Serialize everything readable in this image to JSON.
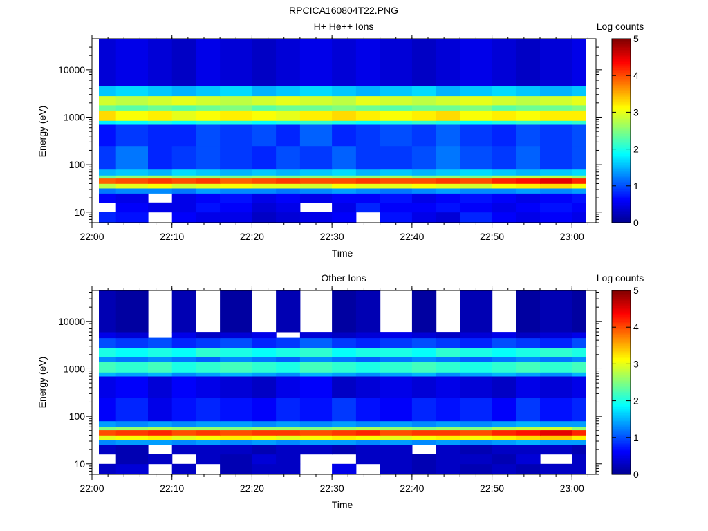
{
  "figure_title": "RPCICA160804T22.PNG",
  "colors": {
    "colormap": [
      "#00008f",
      "#0000ff",
      "#0080ff",
      "#00ffff",
      "#80ff80",
      "#ffff00",
      "#ff8000",
      "#ff0000",
      "#800000"
    ],
    "background": "#ffffff",
    "axis": "#000000"
  },
  "chart_data": [
    {
      "type": "heatmap",
      "title": "H+ He++ Ions",
      "xlabel": "Time",
      "ylabel": "Energy (eV)",
      "yscale": "log",
      "ylim": [
        6,
        45000
      ],
      "xlim": [
        "22:00",
        "23:03"
      ],
      "x_ticks": [
        "22:00",
        "22:10",
        "22:20",
        "22:30",
        "22:40",
        "22:50",
        "23:00"
      ],
      "y_ticks": [
        "10",
        "100",
        "1000",
        "10000"
      ],
      "colorbar": {
        "label": "Log counts",
        "range": [
          0,
          5
        ],
        "ticks": [
          "0",
          "1",
          "2",
          "3",
          "4",
          "5"
        ]
      },
      "time_bins": [
        "22:00",
        "22:03",
        "22:07",
        "22:10",
        "22:13",
        "22:16",
        "22:20",
        "22:23",
        "22:26",
        "22:30",
        "22:33",
        "22:36",
        "22:40",
        "22:43",
        "22:46",
        "22:50",
        "22:53",
        "22:56",
        "23:00"
      ],
      "energy_bands": [
        {
          "e_low": 6,
          "e_high": 10,
          "log_counts": [
            0.8,
            0.7,
            null,
            0.6,
            0.5,
            0.5,
            0.3,
            0.4,
            0.5,
            0.6,
            null,
            0.7,
            0.5,
            0.4,
            0.8,
            0.6,
            0.5,
            0.6,
            0.5
          ]
        },
        {
          "e_low": 10,
          "e_high": 16,
          "log_counts": [
            null,
            0.6,
            0.5,
            0.5,
            0.7,
            0.6,
            0.4,
            0.5,
            null,
            0.5,
            0.8,
            0.6,
            0.6,
            0.7,
            0.6,
            0.5,
            0.6,
            0.7,
            0.6
          ]
        },
        {
          "e_low": 16,
          "e_high": 25,
          "log_counts": [
            0.6,
            0.5,
            null,
            0.5,
            0.6,
            0.7,
            0.5,
            0.6,
            0.5,
            0.6,
            0.6,
            0.7,
            0.5,
            0.6,
            0.7,
            0.6,
            0.5,
            0.6,
            0.7
          ]
        },
        {
          "e_low": 25,
          "e_high": 32,
          "log_counts": [
            1.2,
            1.3,
            1.3,
            1.2,
            1.4,
            1.3,
            1.3,
            1.2,
            1.3,
            1.4,
            1.3,
            1.2,
            1.3,
            1.4,
            1.3,
            1.3,
            1.4,
            1.3,
            1.4
          ]
        },
        {
          "e_low": 32,
          "e_high": 40,
          "log_counts": [
            2.8,
            3.0,
            3.1,
            2.9,
            3.0,
            3.1,
            3.0,
            3.0,
            2.9,
            3.1,
            3.0,
            3.0,
            3.1,
            3.0,
            2.9,
            3.1,
            3.2,
            3.3,
            3.1
          ]
        },
        {
          "e_low": 40,
          "e_high": 52,
          "log_counts": [
            3.9,
            4.0,
            4.1,
            4.0,
            4.1,
            3.9,
            4.0,
            4.1,
            4.0,
            4.0,
            4.1,
            4.0,
            4.0,
            4.1,
            4.0,
            4.2,
            4.3,
            4.5,
            4.2
          ]
        },
        {
          "e_low": 52,
          "e_high": 60,
          "log_counts": [
            2.4,
            2.6,
            2.7,
            2.5,
            2.6,
            2.5,
            2.6,
            2.5,
            2.6,
            2.5,
            2.6,
            2.7,
            2.5,
            2.6,
            2.5,
            2.7,
            2.8,
            2.8,
            2.6
          ]
        },
        {
          "e_low": 60,
          "e_high": 80,
          "log_counts": [
            1.5,
            1.6,
            1.5,
            1.7,
            1.6,
            1.5,
            1.6,
            1.5,
            1.6,
            1.7,
            1.5,
            1.6,
            1.5,
            1.6,
            1.7,
            1.6,
            1.5,
            1.6,
            1.7
          ]
        },
        {
          "e_low": 80,
          "e_high": 250,
          "log_counts": [
            0.9,
            1.2,
            0.8,
            0.9,
            1.0,
            0.9,
            0.8,
            1.0,
            0.9,
            1.1,
            0.9,
            0.9,
            1.0,
            1.2,
            1.0,
            0.9,
            1.1,
            0.9,
            1.0
          ]
        },
        {
          "e_low": 250,
          "e_high": 700,
          "log_counts": [
            0.7,
            0.9,
            0.8,
            0.8,
            1.0,
            0.9,
            1.0,
            0.8,
            1.1,
            0.8,
            0.9,
            1.0,
            0.9,
            1.1,
            0.9,
            0.8,
            1.0,
            0.9,
            1.0
          ]
        },
        {
          "e_low": 700,
          "e_high": 850,
          "log_counts": [
            1.8,
            1.9,
            2.0,
            1.9,
            2.0,
            2.0,
            1.9,
            2.0,
            2.1,
            2.0,
            1.9,
            2.0,
            2.1,
            2.0,
            1.9,
            2.0,
            2.1,
            2.0,
            2.1
          ]
        },
        {
          "e_low": 850,
          "e_high": 1400,
          "log_counts": [
            3.3,
            3.1,
            3.2,
            3.0,
            3.1,
            3.2,
            3.1,
            3.0,
            3.2,
            3.3,
            3.2,
            3.1,
            3.2,
            3.3,
            3.1,
            3.2,
            3.1,
            3.2,
            3.2
          ]
        },
        {
          "e_low": 1400,
          "e_high": 1800,
          "log_counts": [
            2.4,
            2.3,
            2.4,
            2.3,
            2.4,
            2.5,
            2.3,
            2.4,
            2.4,
            2.5,
            2.4,
            2.3,
            2.4,
            2.4,
            2.5,
            2.3,
            2.4,
            2.4,
            2.5
          ]
        },
        {
          "e_low": 1800,
          "e_high": 2800,
          "log_counts": [
            2.9,
            2.8,
            2.9,
            3.0,
            2.9,
            2.8,
            2.9,
            3.0,
            2.9,
            2.8,
            3.0,
            2.9,
            2.8,
            2.9,
            3.0,
            2.9,
            2.8,
            2.9,
            3.0
          ]
        },
        {
          "e_low": 2800,
          "e_high": 4500,
          "log_counts": [
            1.6,
            1.7,
            1.6,
            1.5,
            1.6,
            1.7,
            1.5,
            1.6,
            1.7,
            1.6,
            1.5,
            1.6,
            1.7,
            1.5,
            1.6,
            1.7,
            1.6,
            1.5,
            1.6
          ]
        },
        {
          "e_low": 4500,
          "e_high": 45000,
          "log_counts": [
            0.4,
            0.5,
            0.4,
            0.3,
            0.5,
            0.4,
            0.3,
            0.4,
            0.5,
            0.4,
            0.5,
            0.4,
            0.3,
            0.4,
            0.5,
            0.4,
            0.3,
            0.4,
            0.5
          ]
        }
      ]
    },
    {
      "type": "heatmap",
      "title": "Other Ions",
      "xlabel": "Time",
      "ylabel": "Energy (eV)",
      "yscale": "log",
      "ylim": [
        6,
        45000
      ],
      "xlim": [
        "22:00",
        "23:03"
      ],
      "x_ticks": [
        "22:00",
        "22:10",
        "22:20",
        "22:30",
        "22:40",
        "22:50",
        "23:00"
      ],
      "y_ticks": [
        "10",
        "100",
        "1000",
        "10000"
      ],
      "colorbar": {
        "label": "Log counts",
        "range": [
          0,
          5
        ],
        "ticks": [
          "0",
          "1",
          "2",
          "3",
          "4",
          "5"
        ]
      },
      "time_bins": [
        "22:00",
        "22:03",
        "22:07",
        "22:10",
        "22:13",
        "22:16",
        "22:20",
        "22:23",
        "22:26",
        "22:30",
        "22:33",
        "22:36",
        "22:40",
        "22:43",
        "22:46",
        "22:50",
        "22:53",
        "22:56",
        "23:00"
      ],
      "energy_bands": [
        {
          "e_low": 6,
          "e_high": 10,
          "log_counts": [
            0.3,
            0.4,
            null,
            0.3,
            null,
            0.2,
            0.3,
            0.3,
            null,
            0.5,
            null,
            0.3,
            0.2,
            0.3,
            0.2,
            0.3,
            0.2,
            0.3,
            0.3
          ]
        },
        {
          "e_low": 10,
          "e_high": 16,
          "log_counts": [
            null,
            0.2,
            0.3,
            null,
            0.3,
            0.2,
            0.4,
            0.3,
            null,
            null,
            0.3,
            0.3,
            0.2,
            0.3,
            0.3,
            0.2,
            0.4,
            null,
            0.3
          ]
        },
        {
          "e_low": 16,
          "e_high": 25,
          "log_counts": [
            0.3,
            0.2,
            null,
            0.3,
            0.3,
            0.3,
            0.2,
            0.3,
            0.3,
            0.2,
            0.3,
            0.3,
            null,
            0.3,
            0.2,
            0.3,
            0.3,
            0.3,
            0.2
          ]
        },
        {
          "e_low": 25,
          "e_high": 32,
          "log_counts": [
            1.3,
            1.4,
            1.4,
            1.3,
            1.4,
            1.3,
            1.4,
            1.3,
            1.4,
            1.4,
            1.3,
            1.4,
            1.3,
            1.4,
            1.3,
            1.4,
            1.5,
            1.4,
            1.4
          ]
        },
        {
          "e_low": 32,
          "e_high": 40,
          "log_counts": [
            3.0,
            3.1,
            3.2,
            3.0,
            3.1,
            3.2,
            3.1,
            3.0,
            3.1,
            3.2,
            3.1,
            3.0,
            3.1,
            3.2,
            3.1,
            3.2,
            3.3,
            3.4,
            3.2
          ]
        },
        {
          "e_low": 40,
          "e_high": 52,
          "log_counts": [
            4.0,
            4.1,
            4.2,
            4.0,
            4.1,
            4.0,
            4.1,
            4.1,
            4.0,
            4.1,
            4.2,
            4.0,
            4.1,
            4.1,
            4.0,
            4.2,
            4.3,
            4.5,
            4.2
          ]
        },
        {
          "e_low": 52,
          "e_high": 60,
          "log_counts": [
            2.5,
            2.6,
            2.7,
            2.6,
            2.6,
            2.5,
            2.6,
            2.6,
            2.5,
            2.6,
            2.7,
            2.6,
            2.5,
            2.6,
            2.5,
            2.7,
            2.8,
            2.9,
            2.6
          ]
        },
        {
          "e_low": 60,
          "e_high": 80,
          "log_counts": [
            1.4,
            1.3,
            1.4,
            1.3,
            1.4,
            1.4,
            1.3,
            1.4,
            1.3,
            1.4,
            1.3,
            1.4,
            1.3,
            1.4,
            1.3,
            1.4,
            1.5,
            1.4,
            1.4
          ]
        },
        {
          "e_low": 80,
          "e_high": 250,
          "log_counts": [
            0.6,
            0.8,
            0.5,
            0.7,
            0.8,
            0.7,
            0.6,
            0.8,
            0.7,
            0.9,
            0.7,
            0.6,
            0.8,
            0.7,
            0.8,
            0.6,
            0.9,
            0.7,
            0.8
          ]
        },
        {
          "e_low": 250,
          "e_high": 700,
          "log_counts": [
            0.5,
            0.6,
            0.4,
            0.6,
            0.5,
            0.4,
            0.3,
            0.5,
            0.6,
            0.3,
            0.4,
            0.5,
            0.4,
            0.5,
            0.4,
            0.3,
            0.5,
            0.4,
            0.5
          ]
        },
        {
          "e_low": 700,
          "e_high": 850,
          "log_counts": [
            1.5,
            1.4,
            1.5,
            1.3,
            1.4,
            1.5,
            1.4,
            1.3,
            1.5,
            1.4,
            1.3,
            1.4,
            1.5,
            1.3,
            1.4,
            1.5,
            1.4,
            1.3,
            1.5
          ]
        },
        {
          "e_low": 850,
          "e_high": 1400,
          "log_counts": [
            2.2,
            2.1,
            2.2,
            2.0,
            2.1,
            2.2,
            2.1,
            2.0,
            2.2,
            2.1,
            2.0,
            2.1,
            2.2,
            2.1,
            2.0,
            2.1,
            2.2,
            2.1,
            2.2
          ]
        },
        {
          "e_low": 1400,
          "e_high": 1800,
          "log_counts": [
            1.3,
            1.2,
            1.3,
            1.2,
            1.1,
            1.3,
            1.2,
            1.1,
            1.3,
            1.2,
            1.1,
            1.2,
            1.3,
            1.2,
            1.1,
            1.2,
            1.3,
            1.2,
            1.3
          ]
        },
        {
          "e_low": 1800,
          "e_high": 2800,
          "log_counts": [
            2.0,
            1.9,
            2.0,
            1.9,
            2.1,
            2.0,
            1.9,
            2.0,
            2.1,
            1.9,
            2.0,
            2.0,
            1.9,
            2.1,
            2.0,
            1.9,
            2.0,
            2.1,
            2.0
          ]
        },
        {
          "e_low": 2800,
          "e_high": 4500,
          "log_counts": [
            1.0,
            0.9,
            1.0,
            0.8,
            0.9,
            1.0,
            0.8,
            0.9,
            1.1,
            0.9,
            0.8,
            0.9,
            1.0,
            0.9,
            0.8,
            1.0,
            0.9,
            0.8,
            1.0
          ]
        },
        {
          "e_low": 4500,
          "e_high": 6000,
          "log_counts": [
            0.5,
            0.4,
            null,
            0.5,
            0.3,
            0.4,
            0.5,
            null,
            0.4,
            0.3,
            0.4,
            0.5,
            0.4,
            0.3,
            0.4,
            0.5,
            0.3,
            0.4,
            0.5
          ]
        },
        {
          "e_low": 6000,
          "e_high": 45000,
          "log_counts": [
            0.2,
            0.1,
            null,
            0.2,
            null,
            0.1,
            null,
            0.2,
            null,
            0.1,
            0.2,
            null,
            0.1,
            null,
            0.2,
            null,
            0.1,
            0.2,
            0.1
          ]
        }
      ]
    }
  ]
}
